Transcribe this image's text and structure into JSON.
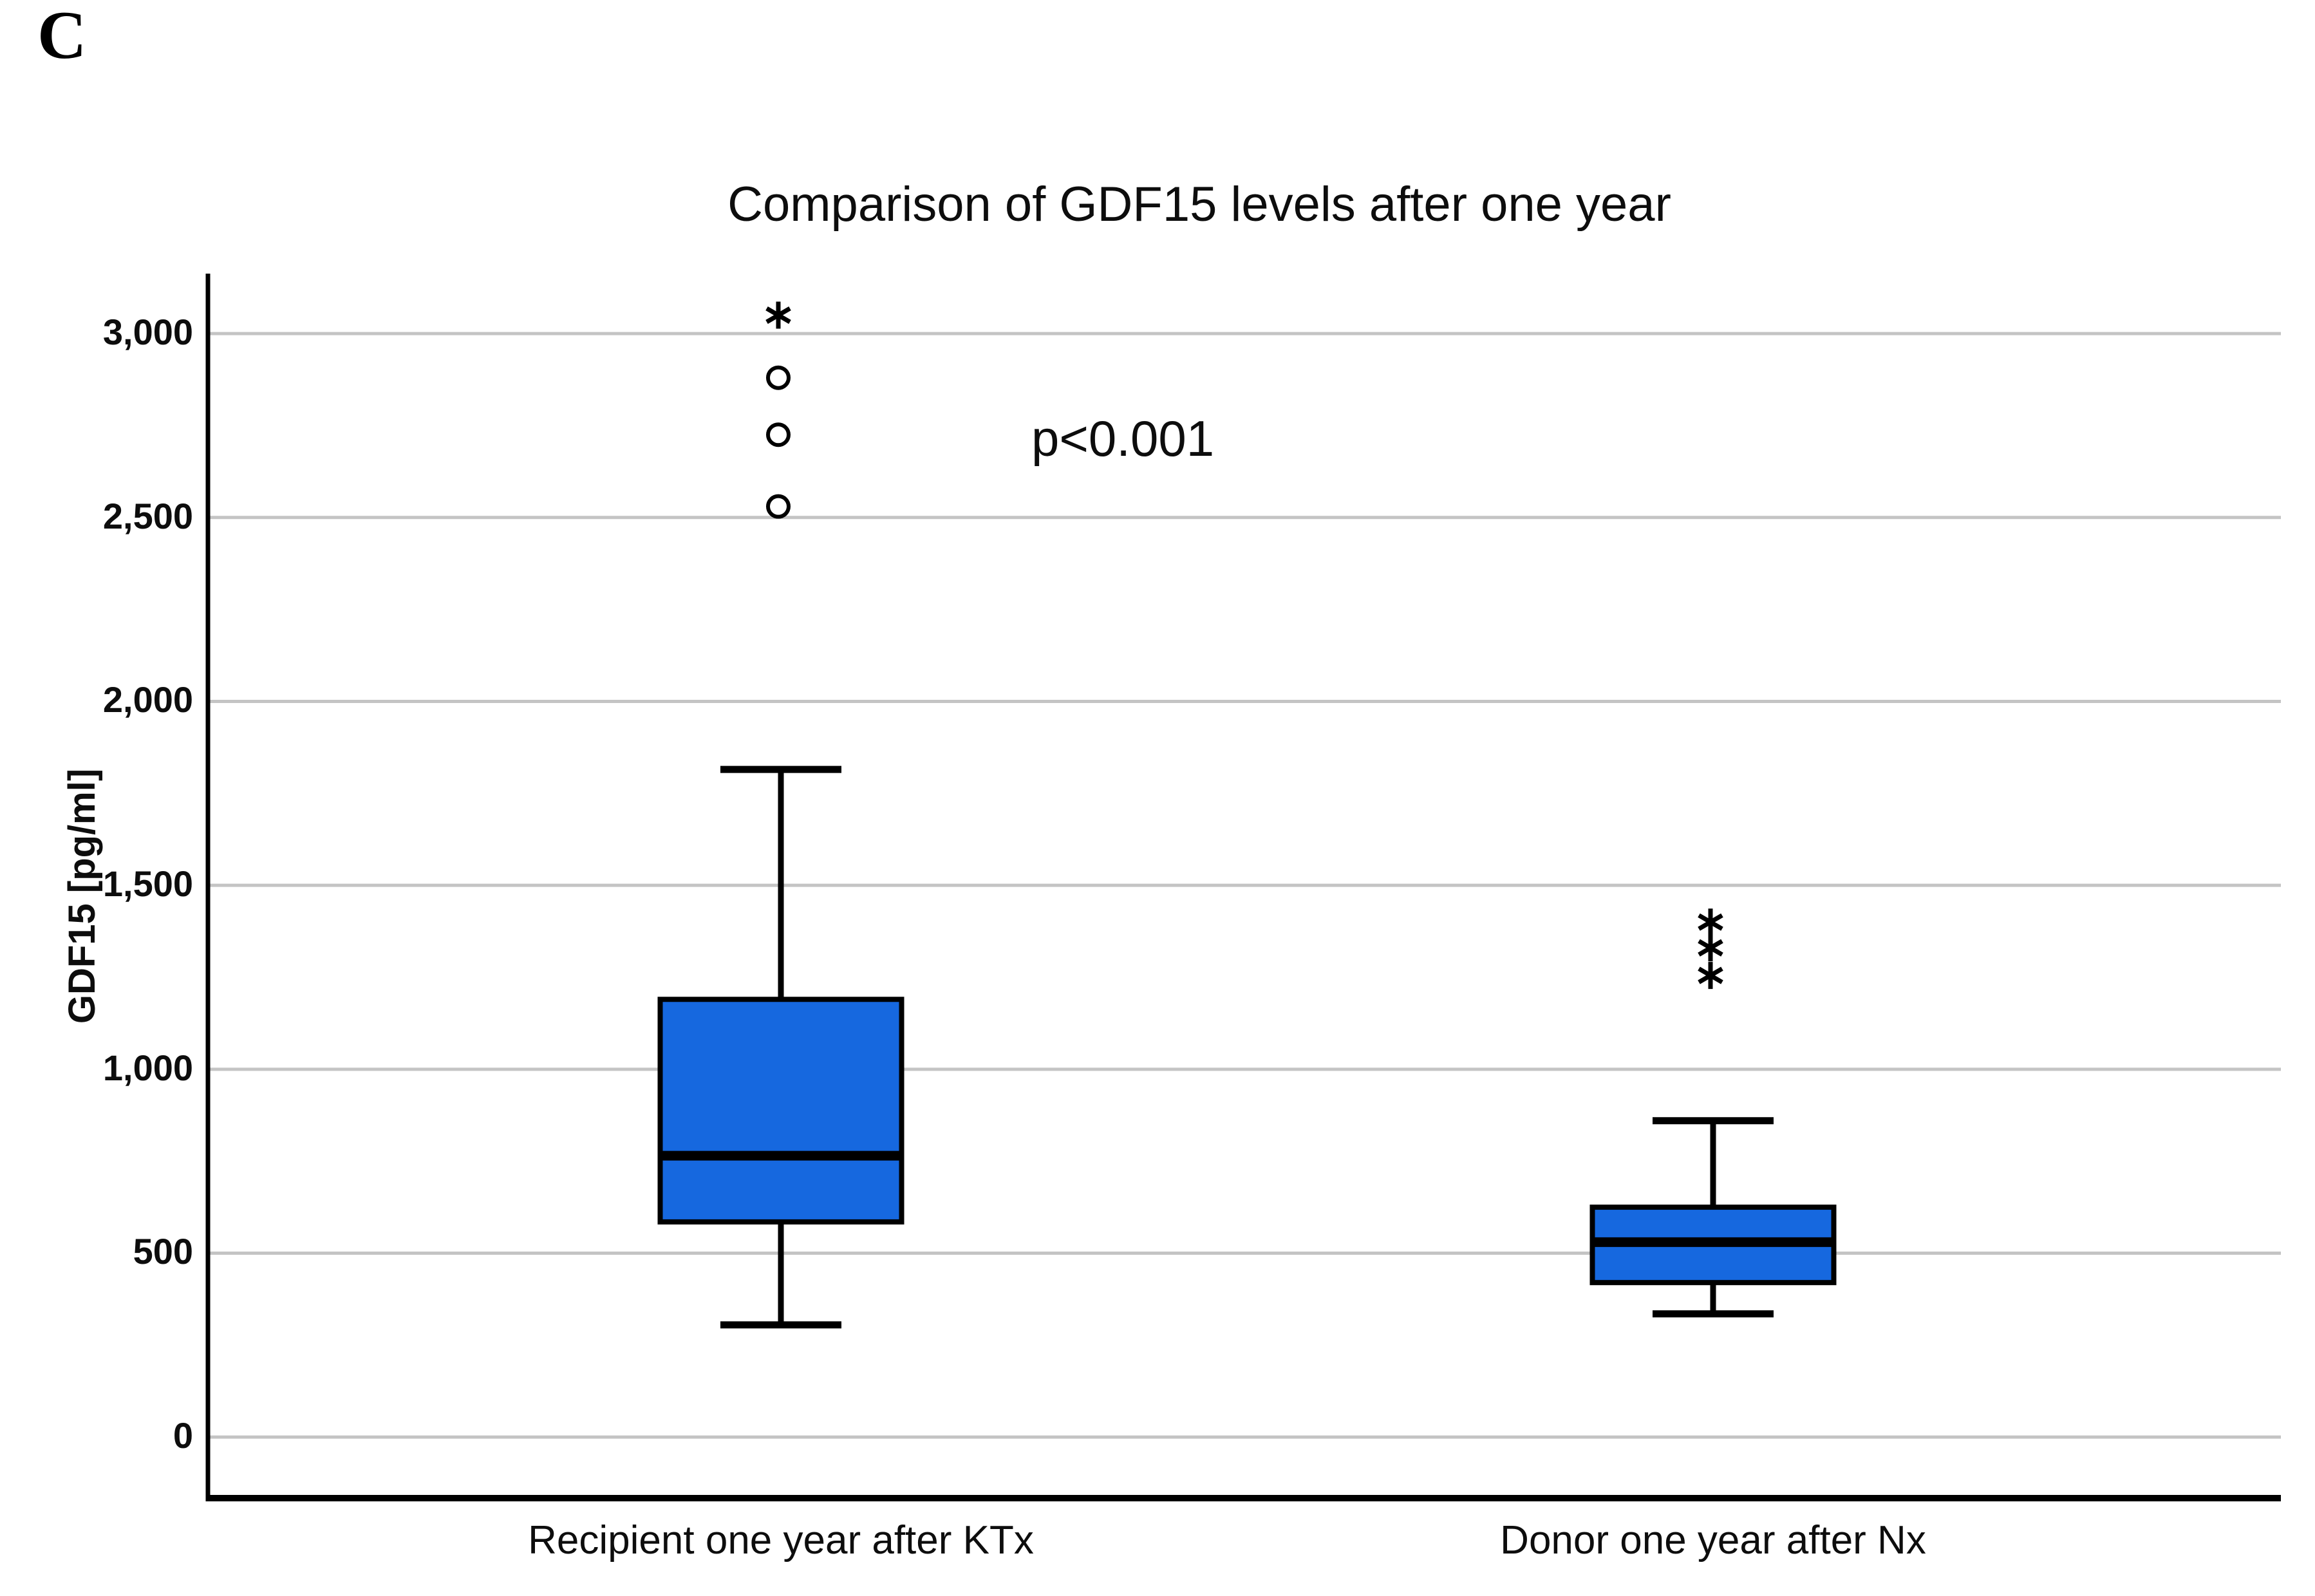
{
  "page": {
    "panel_label": "C"
  },
  "chart_data": {
    "type": "boxplot",
    "title": "Comparison of GDF15 levels after one year",
    "ylabel": "GDF15 [pg/ml]",
    "xlabel": "",
    "annotation": "p<0.001",
    "categories": [
      "Recipient one year after KTx",
      "Donor one year after Nx"
    ],
    "yticks": [
      0,
      500,
      1000,
      1500,
      2000,
      2500,
      3000
    ],
    "ytick_labels": [
      "0",
      "500",
      "1,000",
      "1,500",
      "2,000",
      "2,500",
      "3,000"
    ],
    "ylim": [
      -166,
      3163
    ],
    "grid": true,
    "legend": "none",
    "colors": {
      "box_fill": "#1668df",
      "box_stroke": "#000000",
      "gridline": "#c4c4c4",
      "axis": "#000000",
      "text": "#0d0d0d"
    },
    "series": [
      {
        "category": "Recipient one year after KTx",
        "whisker_low": 305,
        "q1": 585,
        "median": 765,
        "q3": 1190,
        "whisker_high": 1815,
        "outliers_circle": [
          2530,
          2725,
          2880
        ],
        "outliers_extreme": [
          3050
        ]
      },
      {
        "category": "Donor one year after Nx",
        "whisker_low": 335,
        "q1": 420,
        "median": 530,
        "q3": 625,
        "whisker_high": 860,
        "outliers_circle": [],
        "outliers_extreme": [
          1255,
          1330,
          1400
        ]
      }
    ]
  }
}
